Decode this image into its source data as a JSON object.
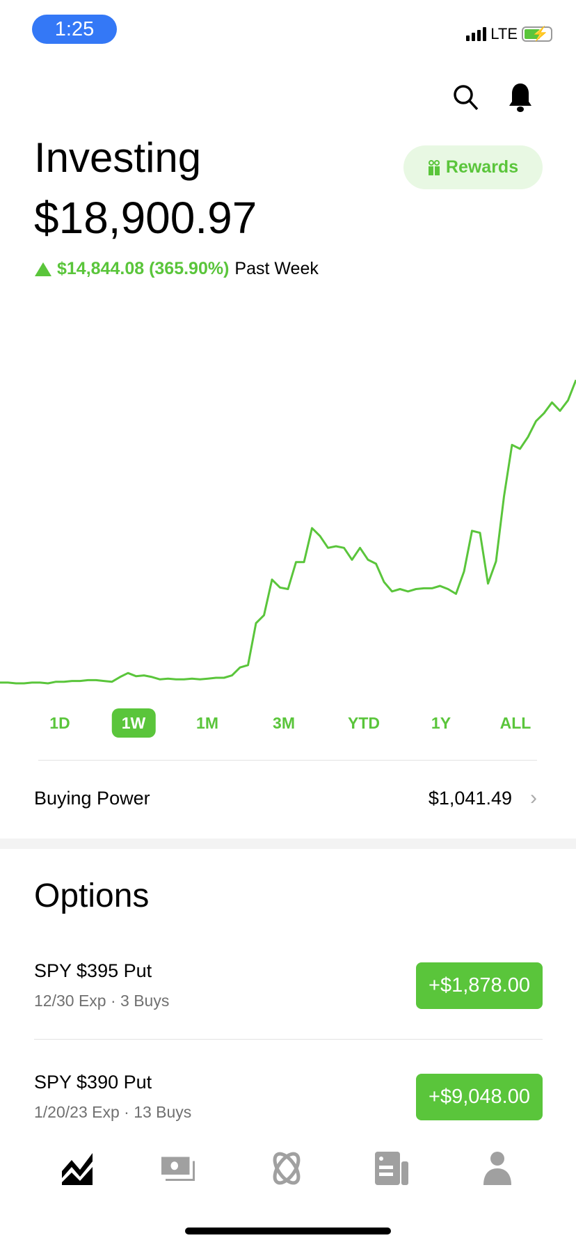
{
  "status": {
    "time": "1:25",
    "network": "LTE"
  },
  "header": {
    "title": "Investing",
    "total": "$18,900.97",
    "rewards_label": "Rewards",
    "change_amount": "$14,844.08 (365.90%)",
    "change_period": "Past Week",
    "accent": "#5ac53b"
  },
  "chart_data": {
    "type": "line",
    "series": [
      {
        "values": [
          4057,
          4057,
          4018,
          4018,
          4057,
          4057,
          4018,
          4096,
          4096,
          4135,
          4135,
          4174,
          4174,
          4135,
          4096,
          4329,
          4523,
          4368,
          4407,
          4329,
          4212,
          4251,
          4212,
          4212,
          4251,
          4212,
          4251,
          4290,
          4290,
          4407,
          4795,
          4912,
          6972,
          7360,
          9109,
          8720,
          8642,
          9964,
          9964,
          11635,
          11246,
          10663,
          10741,
          10663,
          10080,
          10663,
          10080,
          9886,
          8992,
          8526,
          8642,
          8526,
          8642,
          8681,
          8681,
          8798,
          8642,
          8409,
          9500,
          11500,
          11400,
          8914,
          10000,
          13189,
          15715,
          15520,
          16104,
          16881,
          17269,
          17800,
          17386,
          17900,
          18901
        ]
      }
    ],
    "color": "#5ac53b",
    "grid": false
  },
  "periods": [
    {
      "label": "1D"
    },
    {
      "label": "1W",
      "active": true
    },
    {
      "label": "1M"
    },
    {
      "label": "3M"
    },
    {
      "label": "YTD"
    },
    {
      "label": "1Y"
    },
    {
      "label": "ALL"
    }
  ],
  "buying_power": {
    "label": "Buying Power",
    "value": "$1,041.49"
  },
  "options": {
    "title": "Options",
    "items": [
      {
        "name": "SPY $395 Put",
        "sub": "12/30 Exp · 3 Buys",
        "gain": "+$1,878.00"
      },
      {
        "name": "SPY $390 Put",
        "sub": "1/20/23 Exp · 13 Buys",
        "gain": "+$9,048.00"
      }
    ]
  },
  "nav": [
    "investing-icon",
    "banking-icon",
    "crypto-icon",
    "news-icon",
    "account-icon"
  ]
}
